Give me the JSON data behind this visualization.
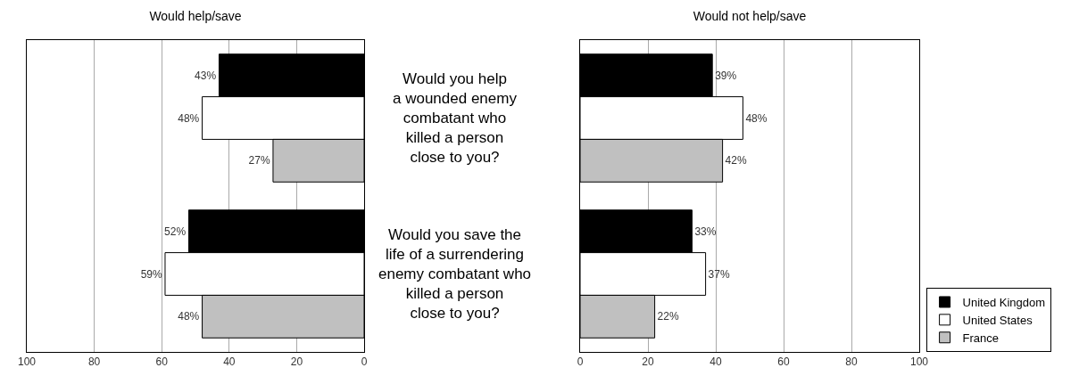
{
  "chart_data": [
    {
      "type": "bar",
      "orientation": "horizontal",
      "title": "Would help/save",
      "categories": [
        "Would you help\na wounded enemy\ncombatant who\nkilled a person\nclose to you?",
        "Would you save the\nlife of a surrendering\nenemy combatant who\nkilled a person\nclose to you?"
      ],
      "series": [
        {
          "color": "#000000",
          "values": [
            43,
            52
          ],
          "value_labels": [
            "43%",
            "52%"
          ]
        },
        {
          "color": "#ffffff",
          "values": [
            48,
            59
          ],
          "value_labels": [
            "48%",
            "59%"
          ]
        },
        {
          "color": "#c0c0c0",
          "values": [
            27,
            48
          ],
          "value_labels": [
            "27%",
            "48%"
          ]
        }
      ],
      "xlim": [
        100,
        0
      ],
      "xticks": [
        0,
        20,
        40,
        60,
        80,
        100
      ],
      "grid": "x"
    },
    {
      "type": "bar",
      "orientation": "horizontal",
      "title": "Would not help/save",
      "categories": [
        null,
        null
      ],
      "series": [
        {
          "name": "United Kingdom",
          "color": "#000000",
          "values": [
            39,
            33
          ],
          "value_labels": [
            "39%",
            "33%"
          ]
        },
        {
          "name": "United States",
          "color": "#ffffff",
          "values": [
            48,
            37
          ],
          "value_labels": [
            "48%",
            "37%"
          ]
        },
        {
          "name": "France",
          "color": "#c0c0c0",
          "values": [
            42,
            22
          ],
          "value_labels": [
            "42%",
            "22%"
          ]
        }
      ],
      "xlim": [
        0,
        100
      ],
      "xticks": [
        0,
        20,
        40,
        60,
        80,
        100
      ],
      "grid": "x",
      "legend": "bottom right"
    }
  ]
}
